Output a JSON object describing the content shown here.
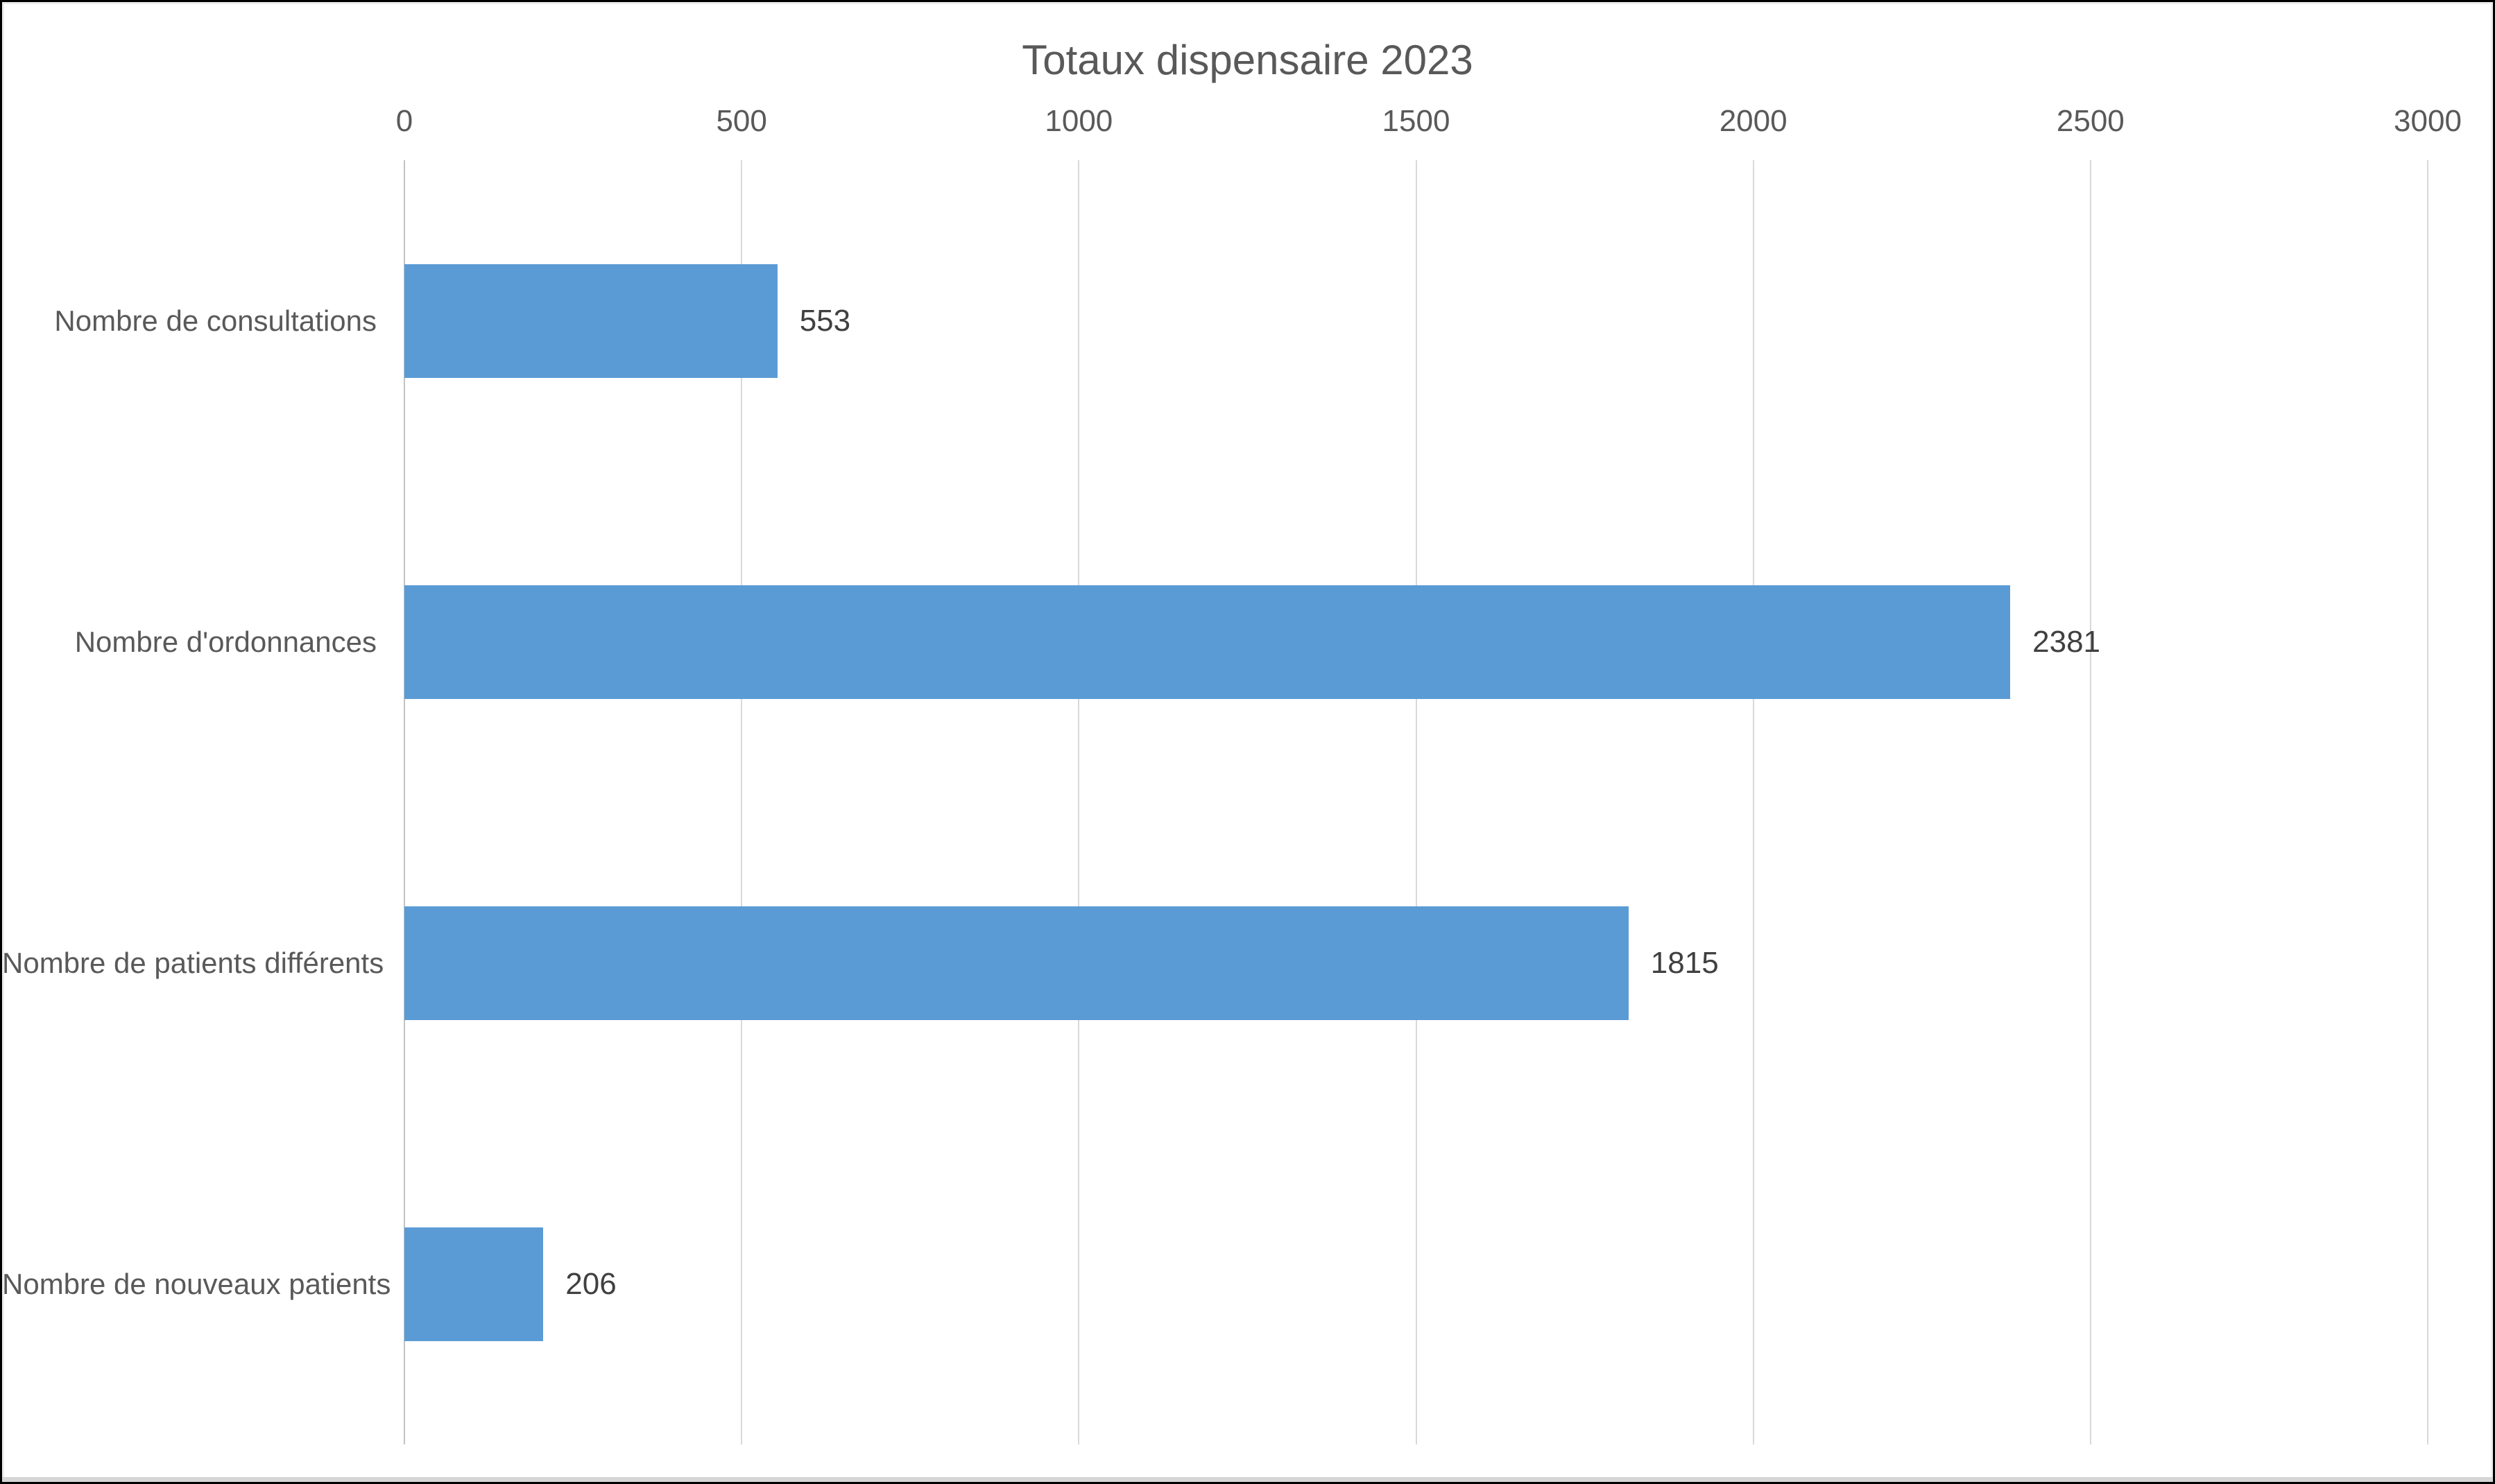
{
  "window": {
    "background": "#ffffff",
    "border_color": "#000000"
  },
  "chart_data": {
    "type": "bar",
    "orientation": "horizontal",
    "title": "Totaux dispensaire 2023",
    "categories": [
      "Nombre de consultations",
      "Nombre d'ordonnances",
      "Nombre de patients différents",
      "Nombre de nouveaux patients"
    ],
    "values": [
      553,
      2381,
      1815,
      206
    ],
    "data_labels": [
      "553",
      "2381",
      "1815",
      "206"
    ],
    "x_ticks": [
      "0",
      "500",
      "1000",
      "1500",
      "2000",
      "2500",
      "3000"
    ],
    "xlim": [
      0,
      3000
    ],
    "xlabel": "",
    "ylabel": "",
    "grid": true,
    "legend_position": "none",
    "tick_position": "top",
    "colors": {
      "bar": "#5b9bd5",
      "gridline": "#d9d9d9",
      "axis_line": "#c3c3c3",
      "title_text": "#595959",
      "tick_text": "#595959",
      "category_text": "#595959",
      "value_text": "#404040"
    }
  }
}
